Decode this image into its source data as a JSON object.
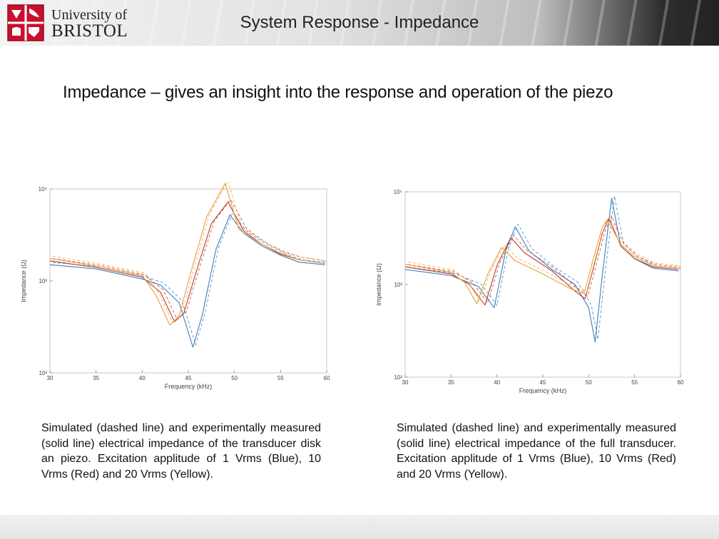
{
  "header": {
    "logo_line1": "University of",
    "logo_line2": "BRISTOL",
    "title": "System Response - Impedance"
  },
  "subtitle": "Impedance – gives an insight into the response and operation of the piezo",
  "captions": {
    "left": "Simulated (dashed line) and experimentally measured (solid line) electrical impedance of the transducer disk an piezo. Excitation applitude of 1 Vrms (Blue), 10 Vrms (Red) and 20 Vrms (Yellow).",
    "right": "Simulated (dashed line) and experimentally measured (solid line) electrical impedance of the full transducer. Excitation applitude of 1 Vrms (Blue), 10 Vrms (Red) and 20 Vrms (Yellow)."
  },
  "colors": {
    "blue": "#3a7fc0",
    "red": "#c0392b",
    "yellow": "#e8a23a"
  },
  "chart_data": [
    {
      "type": "line",
      "id": "left",
      "xlabel": "Frequency (kHz)",
      "ylabel": "Impedance (Ω)",
      "xlim": [
        30,
        60
      ],
      "ylim_log10": [
        2,
        4
      ],
      "x_ticks": [
        30,
        35,
        40,
        45,
        50,
        55,
        60
      ],
      "y_ticks": [
        {
          "exp": 2,
          "label": "10²"
        },
        {
          "exp": 3,
          "label": "10³"
        },
        {
          "exp": 4,
          "label": "10⁴"
        }
      ],
      "series": [
        {
          "name": "1 Vrms (Blue)",
          "color": "blue",
          "x": [
            30,
            35,
            40,
            42,
            44,
            45.5,
            46.5,
            48,
            49.5,
            51,
            53,
            55,
            57,
            59.8
          ],
          "y": [
            1500,
            1350,
            1050,
            900,
            580,
            190,
            420,
            2200,
            5200,
            3300,
            2400,
            1900,
            1600,
            1500
          ]
        },
        {
          "name": "10 Vrms (Red)",
          "color": "red",
          "x": [
            30,
            35,
            40,
            42,
            43.5,
            44.5,
            46,
            47.5,
            49.3,
            51,
            53,
            55,
            57,
            59.8
          ],
          "y": [
            1650,
            1400,
            1100,
            750,
            360,
            440,
            1400,
            4200,
            7200,
            3500,
            2500,
            1950,
            1700,
            1550
          ]
        },
        {
          "name": "20 Vrms (Yellow)",
          "color": "yellow",
          "x": [
            30,
            35,
            40,
            41.5,
            43,
            44,
            45.5,
            47,
            49,
            50.5,
            53,
            55,
            57,
            59.8
          ],
          "y": [
            1750,
            1450,
            1150,
            700,
            330,
            420,
            1500,
            5000,
            11500,
            3600,
            2500,
            2000,
            1700,
            1550
          ]
        }
      ]
    },
    {
      "type": "line",
      "id": "right",
      "xlabel": "Frequency (kHz)",
      "ylabel": "Impedance (Ω)",
      "xlim": [
        30,
        60
      ],
      "ylim_log10": [
        2,
        4
      ],
      "x_ticks": [
        30,
        35,
        40,
        45,
        50,
        55,
        60
      ],
      "y_ticks": [
        {
          "exp": 2,
          "label": "10²"
        },
        {
          "exp": 3,
          "label": "10³"
        },
        {
          "exp": 4,
          "label": "10⁴"
        }
      ],
      "series": [
        {
          "name": "1 Vrms (Blue)",
          "color": "blue",
          "x": [
            30,
            35,
            38,
            39.7,
            41,
            42,
            43.5,
            46,
            48.5,
            50,
            50.7,
            51.5,
            52.5,
            53.5,
            55,
            57,
            59.8
          ],
          "y": [
            1450,
            1250,
            950,
            560,
            2400,
            4200,
            2300,
            1450,
            1000,
            560,
            240,
            1300,
            8500,
            2600,
            1900,
            1500,
            1400
          ]
        },
        {
          "name": "10 Vrms (Red)",
          "color": "red",
          "x": [
            30,
            35,
            37,
            38.7,
            40,
            41.5,
            43,
            46,
            48.5,
            49.6,
            50.5,
            51.5,
            52.2,
            53.5,
            55,
            57,
            59.8
          ],
          "y": [
            1550,
            1300,
            1000,
            600,
            1600,
            3200,
            2200,
            1400,
            850,
            700,
            1500,
            3600,
            5200,
            2600,
            1900,
            1550,
            1450
          ]
        },
        {
          "name": "20 Vrms (Yellow)",
          "color": "yellow",
          "x": [
            30,
            35,
            36.5,
            37.8,
            39,
            40.5,
            42,
            45,
            48,
            49.5,
            50.5,
            51.5,
            52,
            53.5,
            55,
            57,
            59.8
          ],
          "y": [
            1650,
            1350,
            1050,
            620,
            1300,
            2500,
            1800,
            1300,
            900,
            800,
            1900,
            4200,
            5000,
            2700,
            2000,
            1600,
            1500
          ]
        }
      ]
    }
  ]
}
